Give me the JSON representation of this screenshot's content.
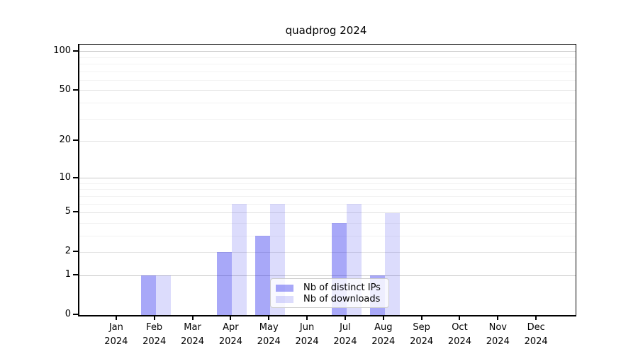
{
  "chart_data": {
    "type": "bar",
    "title": "quadprog 2024",
    "x_axis": {
      "categories": [
        "Jan",
        "Feb",
        "Mar",
        "Apr",
        "May",
        "Jun",
        "Jul",
        "Aug",
        "Sep",
        "Oct",
        "Nov",
        "Dec"
      ],
      "year_label": "2024"
    },
    "series": [
      {
        "name": "Nb of distinct IPs",
        "fill": "rgba(20,20,235,0.37)",
        "solid_color": "#a9a9f8",
        "values": [
          0,
          1,
          0,
          2,
          3,
          0,
          4,
          1,
          0,
          0,
          0,
          0
        ]
      },
      {
        "name": "Nb of downloads",
        "fill": "rgba(20,20,235,0.15)",
        "solid_color": "#dcdcf8",
        "values": [
          0,
          1,
          0,
          6,
          6,
          0,
          6,
          5,
          0,
          0,
          0,
          0
        ]
      }
    ],
    "y_axis": {
      "scale": "log1p",
      "ylim": [
        0,
        113
      ],
      "labeled_ticks": [
        0,
        1,
        2,
        5,
        10,
        20,
        50,
        100
      ],
      "decade_gridlines": [
        1,
        10,
        100
      ],
      "mid_gridlines": [
        2,
        5,
        20,
        50
      ],
      "minor_gridlines": [
        3,
        4,
        6,
        7,
        8,
        9,
        30,
        40,
        60,
        70,
        80,
        90
      ]
    },
    "legend": {
      "position": "lower center"
    },
    "grid": true,
    "colors": {
      "grid_decade": "#c9c9c9",
      "grid_mid": "#e3e3e3",
      "grid_minor": "#f2f2f2",
      "axis": "#000000",
      "background": "#ffffff"
    }
  }
}
